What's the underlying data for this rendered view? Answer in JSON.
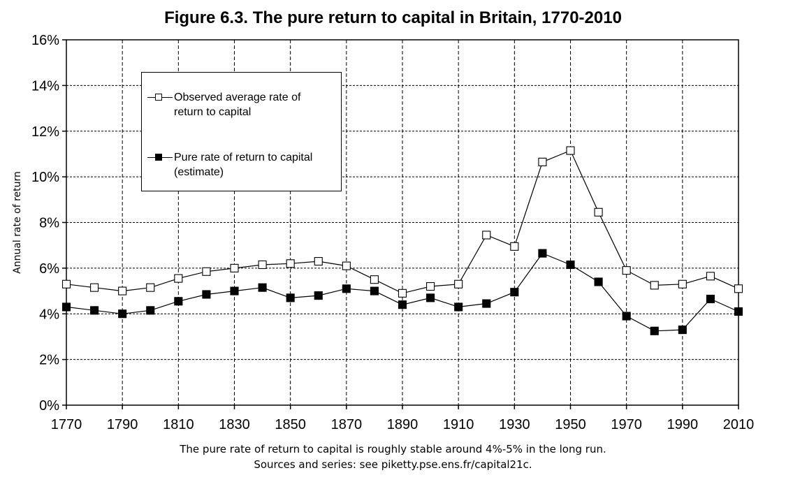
{
  "chart_data": {
    "type": "line",
    "title": "Figure 6.3. The pure return to capital in Britain, 1770-2010",
    "xlabel": "",
    "ylabel": "Annual rate of return",
    "x": [
      1770,
      1780,
      1790,
      1800,
      1810,
      1820,
      1830,
      1840,
      1850,
      1860,
      1870,
      1880,
      1890,
      1900,
      1910,
      1920,
      1930,
      1940,
      1950,
      1960,
      1970,
      1980,
      1990,
      2000,
      2010
    ],
    "xlim": [
      1770,
      2010
    ],
    "ylim": [
      0,
      16
    ],
    "x_ticks": [
      "1770",
      "1790",
      "1810",
      "1830",
      "1850",
      "1870",
      "1890",
      "1910",
      "1930",
      "1950",
      "1970",
      "1990",
      "2010"
    ],
    "y_ticks": [
      "0%",
      "2%",
      "4%",
      "6%",
      "8%",
      "10%",
      "12%",
      "14%",
      "16%"
    ],
    "grid": true,
    "legend_position": "top-left",
    "series": [
      {
        "name": "Observed average rate of return to capital",
        "marker": "hollow-square",
        "color": "#000000",
        "values": [
          5.3,
          5.15,
          5.0,
          5.15,
          5.55,
          5.85,
          6.0,
          6.15,
          6.2,
          6.3,
          6.1,
          5.5,
          4.9,
          5.2,
          5.3,
          7.45,
          6.95,
          10.65,
          11.15,
          8.45,
          5.9,
          5.25,
          5.3,
          5.65,
          5.1
        ]
      },
      {
        "name": "Pure rate of return to capital (estimate)",
        "marker": "filled-square",
        "color": "#000000",
        "values": [
          4.3,
          4.15,
          4.0,
          4.15,
          4.55,
          4.85,
          5.0,
          5.15,
          4.7,
          4.8,
          5.1,
          5.0,
          4.4,
          4.7,
          4.3,
          4.45,
          4.95,
          6.65,
          6.15,
          5.4,
          3.9,
          3.25,
          3.3,
          4.65,
          4.1
        ]
      }
    ],
    "legend": [
      {
        "label_line1": "Observed average rate of",
        "label_line2": "return to capital"
      },
      {
        "label_line1": "Pure rate of return to capital",
        "label_line2": "(estimate)"
      }
    ]
  },
  "caption": {
    "line1": "The pure rate of return to capital is roughly stable around 4%-5% in the long run.",
    "line2": "Sources and series: see piketty.pse.ens.fr/capital21c."
  }
}
